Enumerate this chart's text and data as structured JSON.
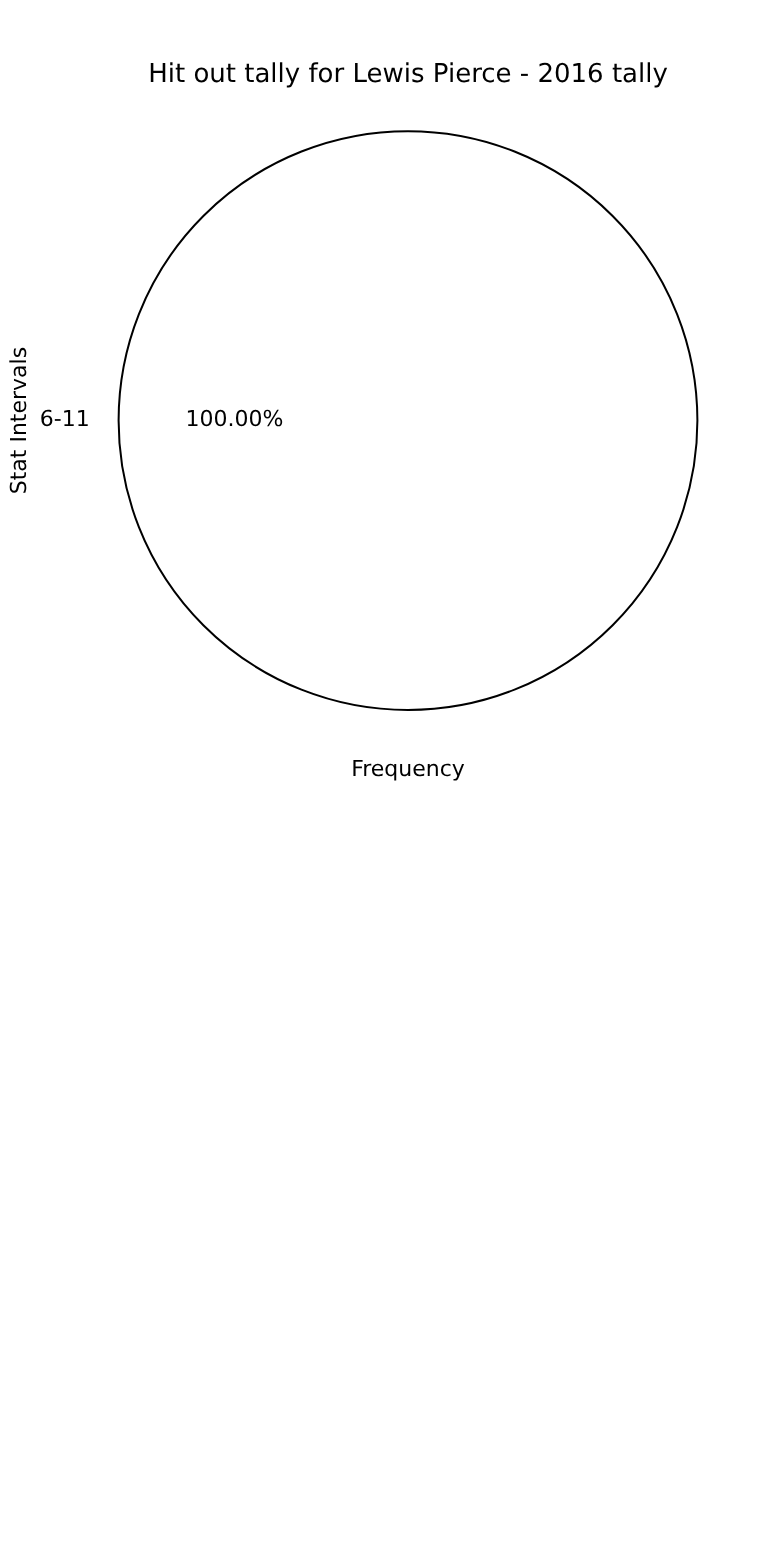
{
  "chart_data": {
    "type": "pie",
    "title": "Hit out tally for Lewis Pierce - 2016 tally",
    "xlabel": "Frequency",
    "ylabel": "Stat Intervals",
    "categories": [
      "6-11"
    ],
    "values": [
      100
    ],
    "colors": [
      "#ffffff"
    ],
    "value_labels": [
      "100.00%"
    ],
    "legend": false
  }
}
